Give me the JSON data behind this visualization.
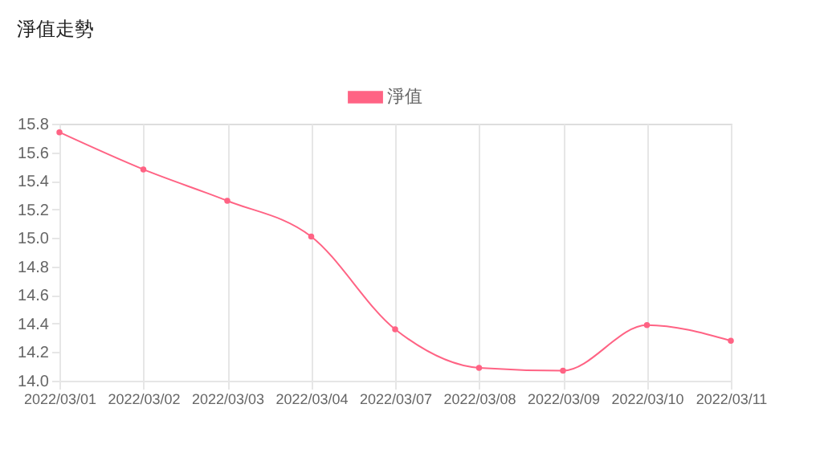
{
  "chart_data": {
    "type": "line",
    "title": "淨值走勢",
    "categories": [
      "2022/03/01",
      "2022/03/02",
      "2022/03/03",
      "2022/03/04",
      "2022/03/07",
      "2022/03/08",
      "2022/03/09",
      "2022/03/10",
      "2022/03/11"
    ],
    "series": [
      {
        "name": "淨值",
        "color": "#ff6384",
        "values": [
          15.74,
          15.48,
          15.26,
          15.01,
          14.36,
          14.09,
          14.07,
          14.39,
          14.28
        ]
      }
    ],
    "ylim": [
      14.0,
      15.8
    ],
    "yticks": [
      {
        "value": 14.0,
        "label": "14.0"
      },
      {
        "value": 14.2,
        "label": "14.2"
      },
      {
        "value": 14.4,
        "label": "14.4"
      },
      {
        "value": 14.6,
        "label": "14.6"
      },
      {
        "value": 14.8,
        "label": "14.8"
      },
      {
        "value": 15.0,
        "label": "15.0"
      },
      {
        "value": 15.2,
        "label": "15.2"
      },
      {
        "value": 15.4,
        "label": "15.4"
      },
      {
        "value": 15.6,
        "label": "15.6"
      },
      {
        "value": 15.8,
        "label": "15.8"
      }
    ],
    "grid": "x",
    "legend": "top",
    "marker": "circle",
    "line_style": "solid"
  }
}
